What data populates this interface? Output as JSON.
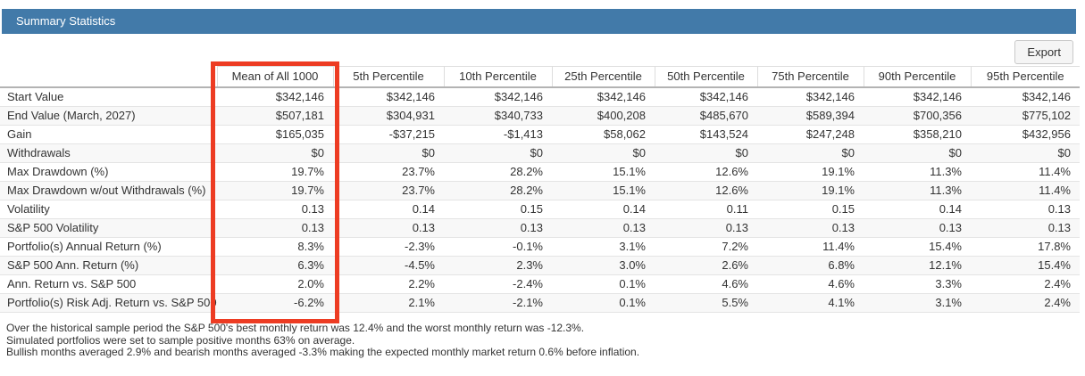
{
  "panel": {
    "title": "Summary Statistics"
  },
  "toolbar": {
    "export_label": "Export"
  },
  "colors": {
    "header_bar": "#427aa9",
    "header_text": "#ffffff",
    "highlight_box": "#ed3c23",
    "zebra_row": "#f8f8f8"
  },
  "highlight": {
    "column": "Mean of All 1000",
    "color": "#ed3c23"
  },
  "table": {
    "columns": [
      "Mean of All 1000",
      "5th Percentile",
      "10th Percentile",
      "25th Percentile",
      "50th Percentile",
      "75th Percentile",
      "90th Percentile",
      "95th Percentile"
    ],
    "rows": [
      {
        "label": "Start Value",
        "values": [
          "$342,146",
          "$342,146",
          "$342,146",
          "$342,146",
          "$342,146",
          "$342,146",
          "$342,146",
          "$342,146"
        ]
      },
      {
        "label": "End Value (March, 2027)",
        "values": [
          "$507,181",
          "$304,931",
          "$340,733",
          "$400,208",
          "$485,670",
          "$589,394",
          "$700,356",
          "$775,102"
        ]
      },
      {
        "label": "Gain",
        "values": [
          "$165,035",
          "-$37,215",
          "-$1,413",
          "$58,062",
          "$143,524",
          "$247,248",
          "$358,210",
          "$432,956"
        ]
      },
      {
        "label": "Withdrawals",
        "values": [
          "$0",
          "$0",
          "$0",
          "$0",
          "$0",
          "$0",
          "$0",
          "$0"
        ]
      },
      {
        "label": "Max Drawdown (%)",
        "values": [
          "19.7%",
          "23.7%",
          "28.2%",
          "15.1%",
          "12.6%",
          "19.1%",
          "11.3%",
          "11.4%"
        ]
      },
      {
        "label": "Max Drawdown w/out Withdrawals (%)",
        "values": [
          "19.7%",
          "23.7%",
          "28.2%",
          "15.1%",
          "12.6%",
          "19.1%",
          "11.3%",
          "11.4%"
        ]
      },
      {
        "label": "Volatility",
        "values": [
          "0.13",
          "0.14",
          "0.15",
          "0.14",
          "0.11",
          "0.15",
          "0.14",
          "0.13"
        ]
      },
      {
        "label": "S&P 500 Volatility",
        "values": [
          "0.13",
          "0.13",
          "0.13",
          "0.13",
          "0.13",
          "0.13",
          "0.13",
          "0.13"
        ]
      },
      {
        "label": "Portfolio(s) Annual Return (%)",
        "values": [
          "8.3%",
          "-2.3%",
          "-0.1%",
          "3.1%",
          "7.2%",
          "11.4%",
          "15.4%",
          "17.8%"
        ]
      },
      {
        "label": "S&P 500 Ann. Return (%)",
        "values": [
          "6.3%",
          "-4.5%",
          "2.3%",
          "3.0%",
          "2.6%",
          "6.8%",
          "12.1%",
          "15.4%"
        ]
      },
      {
        "label": "Ann. Return vs. S&P 500",
        "values": [
          "2.0%",
          "2.2%",
          "-2.4%",
          "0.1%",
          "4.6%",
          "4.6%",
          "3.3%",
          "2.4%"
        ]
      },
      {
        "label": "Portfolio(s) Risk Adj. Return vs. S&P 500",
        "values": [
          "-6.2%",
          "2.1%",
          "-2.1%",
          "0.1%",
          "5.5%",
          "4.1%",
          "3.1%",
          "2.4%"
        ]
      }
    ]
  },
  "footnotes": [
    "Over the historical sample period the S&P 500's best monthly return was 12.4% and the worst monthly return was -12.3%.",
    "Simulated portfolios were set to sample positive months 63% on average.",
    "Bullish months averaged 2.9% and bearish months averaged -3.3% making the expected monthly market return 0.6% before inflation."
  ]
}
